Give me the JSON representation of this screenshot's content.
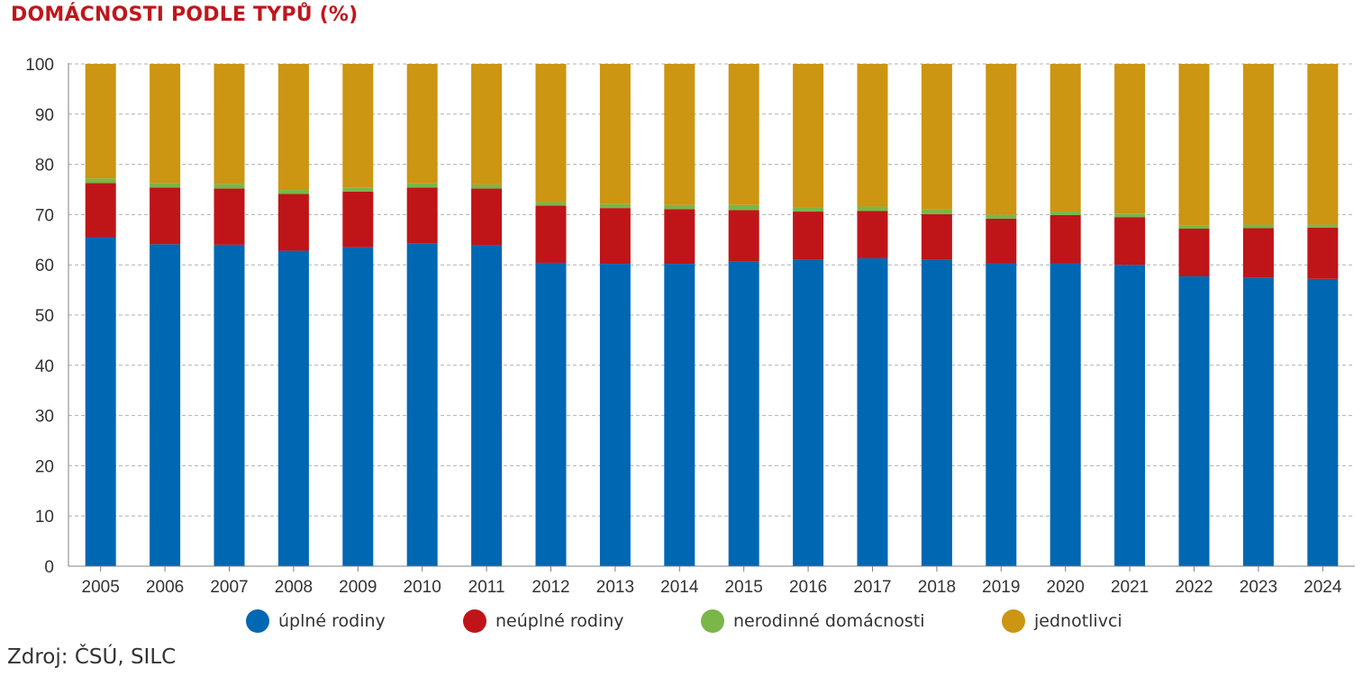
{
  "title": "DOMÁCNOSTI PODLE TYPŮ (%)",
  "source": "Zdroj: ČSÚ, SILC",
  "colors": {
    "uplne": "#0067b3",
    "neuplne": "#bf1518",
    "nerodinne": "#7ab648",
    "jednotlivci": "#cc9512",
    "grid": "#b0b0b0",
    "axis": "#808080"
  },
  "chart_data": {
    "type": "bar",
    "stacked": true,
    "categories": [
      "2005",
      "2006",
      "2007",
      "2008",
      "2009",
      "2010",
      "2011",
      "2012",
      "2013",
      "2014",
      "2015",
      "2016",
      "2017",
      "2018",
      "2019",
      "2020",
      "2021",
      "2022",
      "2023",
      "2024"
    ],
    "series": [
      {
        "name": "úplné rodiny",
        "color": "#0067b3",
        "values": [
          65.5,
          64.1,
          64.0,
          62.8,
          63.5,
          64.2,
          63.9,
          60.4,
          60.2,
          60.2,
          60.6,
          61.0,
          61.3,
          61.0,
          60.3,
          60.3,
          60.0,
          57.7,
          57.4,
          57.2
        ]
      },
      {
        "name": "neúplné rodiny",
        "color": "#bf1518",
        "values": [
          10.8,
          11.3,
          11.2,
          11.3,
          11.1,
          11.2,
          11.3,
          11.4,
          11.1,
          10.9,
          10.3,
          9.6,
          9.4,
          9.1,
          8.9,
          9.6,
          9.5,
          9.5,
          9.9,
          10.2
        ]
      },
      {
        "name": "nerodinné domácnosti",
        "color": "#7ab648",
        "values": [
          0.9,
          0.9,
          0.9,
          0.8,
          0.8,
          0.8,
          0.8,
          0.7,
          0.8,
          0.8,
          1.0,
          0.9,
          0.9,
          0.9,
          0.8,
          0.7,
          0.7,
          0.6,
          0.7,
          0.6
        ]
      },
      {
        "name": "jednotlivci",
        "color": "#cc9512",
        "values": [
          22.8,
          23.7,
          23.9,
          25.1,
          24.6,
          23.8,
          24.0,
          27.5,
          27.9,
          28.1,
          28.1,
          28.5,
          28.4,
          29.0,
          30.0,
          29.4,
          29.8,
          32.2,
          32.0,
          32.0
        ]
      }
    ],
    "xlabel": "",
    "ylabel": "",
    "ylim": [
      0,
      100
    ],
    "yticks": [
      0,
      10,
      20,
      30,
      40,
      50,
      60,
      70,
      80,
      90,
      100
    ],
    "grid": true,
    "legend_position": "bottom"
  }
}
